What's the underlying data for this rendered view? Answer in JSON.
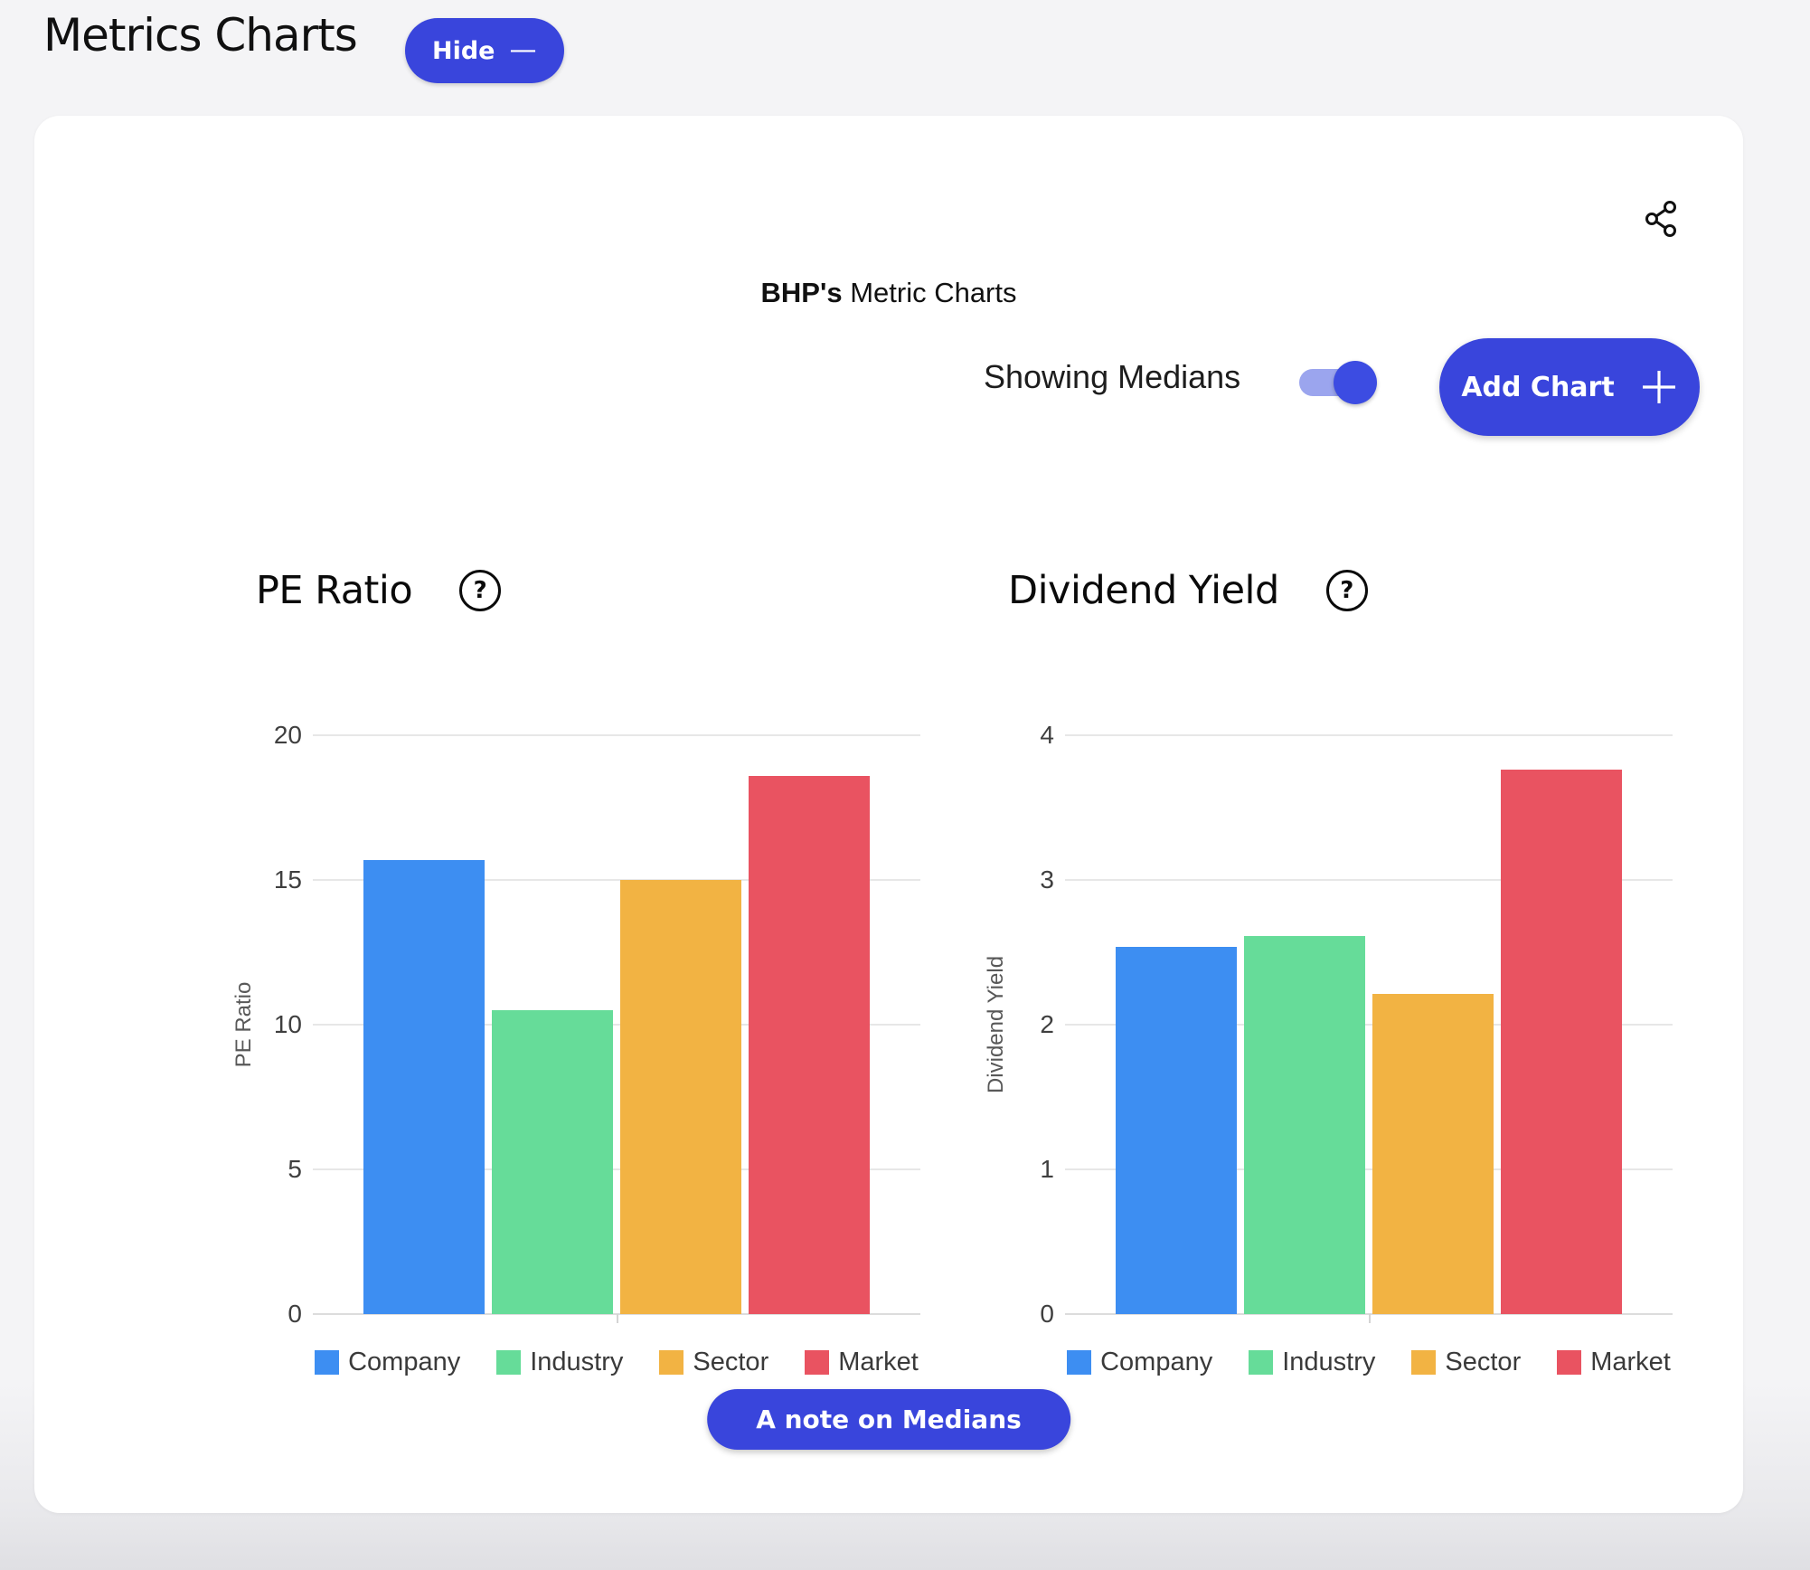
{
  "page": {
    "title": "Metrics Charts",
    "hide_label": "Hide",
    "hide_icon": "—"
  },
  "card": {
    "heading_bold": "BHP's",
    "heading_rest": " Metric Charts",
    "medians_label": "Showing Medians",
    "medians_toggle_state": "on",
    "add_chart_label": "Add Chart",
    "add_chart_icon": "+",
    "help_icon": "?",
    "note_label": "A note on Medians",
    "accent_color": "#3945dc"
  },
  "chart_data": [
    {
      "type": "bar",
      "title": "PE Ratio",
      "ylabel": "PE Ratio",
      "xlabel": "",
      "categories": [
        "Company",
        "Industry",
        "Sector",
        "Market"
      ],
      "values": [
        15.7,
        10.5,
        15.0,
        18.6
      ],
      "colors": [
        "#3d8ef2",
        "#66dc99",
        "#f2b343",
        "#e95361"
      ],
      "ylim": [
        0,
        20
      ],
      "yticks": [
        0,
        5,
        10,
        15,
        20
      ],
      "grid": true,
      "legend_position": "bottom"
    },
    {
      "type": "bar",
      "title": "Dividend Yield",
      "ylabel": "Dividend Yield",
      "xlabel": "",
      "categories": [
        "Company",
        "Industry",
        "Sector",
        "Market"
      ],
      "values": [
        2.54,
        2.61,
        2.21,
        3.76
      ],
      "colors": [
        "#3d8ef2",
        "#66dc99",
        "#f2b343",
        "#e95361"
      ],
      "ylim": [
        0,
        4
      ],
      "yticks": [
        0,
        1,
        2,
        3,
        4
      ],
      "grid": true,
      "legend_position": "bottom"
    }
  ]
}
